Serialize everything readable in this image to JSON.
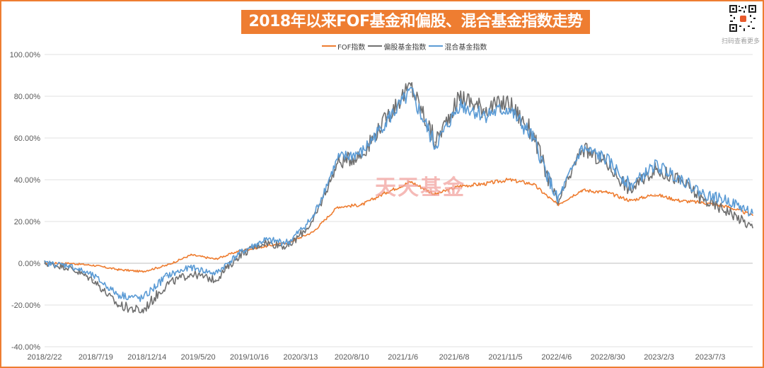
{
  "title": "2018年以来FOF基金和偏股、混合基金指数走势",
  "qr_caption": "扫码查看更多",
  "watermark": "天天基金",
  "colors": {
    "frame": "#ee7d31",
    "fof": "#ee7d31",
    "equity": "#707070",
    "mixed": "#5b9bd5",
    "grid": "#e0e0e0",
    "axis_text": "#595959"
  },
  "chart_data": {
    "type": "line",
    "title": "2018年以来FOF基金和偏股、混合基金指数走势",
    "xlabel": "",
    "ylabel": "",
    "y_tick_labels": [
      "100.00%",
      "80.00%",
      "60.00%",
      "40.00%",
      "20.00%",
      "0.00%",
      "-20.00%",
      "-40.00%"
    ],
    "ylim": [
      -40,
      100
    ],
    "x_tick_labels": [
      "2018/2/22",
      "2018/7/19",
      "2018/12/14",
      "2019/5/20",
      "2019/10/16",
      "2020/3/13",
      "2020/8/10",
      "2021/1/6",
      "2021/6/8",
      "2021/11/5",
      "2022/4/6",
      "2022/8/30",
      "2023/2/3",
      "2023/7/3"
    ],
    "x": [
      "2018/2/22",
      "2018/5/1",
      "2018/7/19",
      "2018/10/8",
      "2018/12/14",
      "2019/2/25",
      "2019/5/20",
      "2019/8/1",
      "2019/10/16",
      "2019/12/30",
      "2020/3/13",
      "2020/5/28",
      "2020/8/10",
      "2020/10/22",
      "2021/1/6",
      "2021/2/18",
      "2021/3/24",
      "2021/6/8",
      "2021/8/20",
      "2021/11/5",
      "2022/1/19",
      "2022/4/6",
      "2022/6/15",
      "2022/8/30",
      "2022/11/10",
      "2023/2/3",
      "2023/4/18",
      "2023/7/3",
      "2023/9/14",
      "2023/11/28"
    ],
    "grid": true,
    "legend_position": "top",
    "series": [
      {
        "name": "FOF指数",
        "values": [
          0,
          0,
          -1,
          -3,
          -4,
          -1,
          4,
          2,
          6,
          8,
          10,
          15,
          27,
          28,
          34,
          39,
          33,
          37,
          38,
          40,
          38,
          28,
          35,
          34,
          30,
          33,
          30,
          29,
          27,
          23
        ]
      },
      {
        "name": "偏股基金指数",
        "values": [
          0,
          -2,
          -8,
          -20,
          -23,
          -10,
          -5,
          -8,
          4,
          10,
          8,
          20,
          48,
          52,
          70,
          85,
          58,
          80,
          74,
          77,
          62,
          28,
          55,
          48,
          35,
          45,
          40,
          30,
          25,
          17
        ]
      },
      {
        "name": "混合基金指数",
        "values": [
          0,
          -1,
          -6,
          -15,
          -17,
          -6,
          -2,
          -5,
          5,
          11,
          10,
          22,
          50,
          53,
          68,
          82,
          56,
          76,
          71,
          74,
          60,
          30,
          55,
          50,
          37,
          47,
          41,
          33,
          30,
          24
        ]
      }
    ]
  }
}
